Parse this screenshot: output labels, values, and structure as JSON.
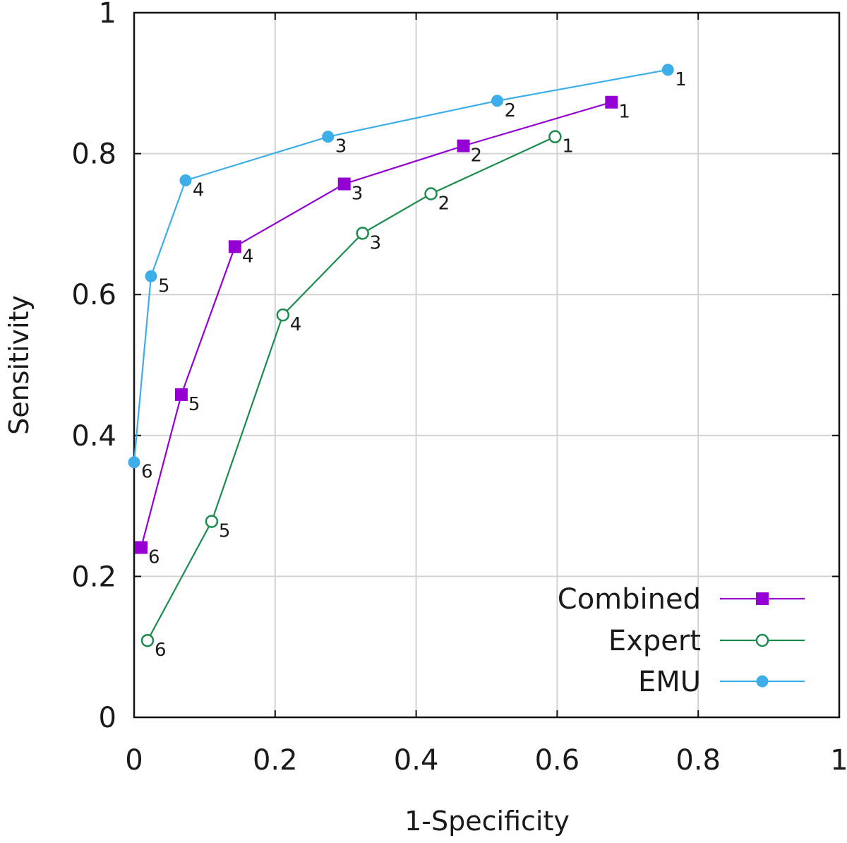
{
  "chart_data": {
    "type": "line",
    "title": "",
    "xlabel": "1-Specificity",
    "ylabel": "Sensitivity",
    "xlim": [
      0,
      1
    ],
    "ylim": [
      0,
      1
    ],
    "xticks": [
      "0",
      "0.2",
      "0.4",
      "0.6",
      "0.8",
      "1"
    ],
    "yticks": [
      "0",
      "0.2",
      "0.4",
      "0.6",
      "0.8",
      "1"
    ],
    "grid": true,
    "legend_position": "bottom-right",
    "series": [
      {
        "name": "Combined",
        "color": "#9400d3",
        "marker": "filled-square",
        "points": [
          {
            "x": 0.677,
            "y": 0.873,
            "label": "1"
          },
          {
            "x": 0.467,
            "y": 0.811,
            "label": "2"
          },
          {
            "x": 0.298,
            "y": 0.757,
            "label": "3"
          },
          {
            "x": 0.143,
            "y": 0.668,
            "label": "4"
          },
          {
            "x": 0.067,
            "y": 0.458,
            "label": "5"
          },
          {
            "x": 0.01,
            "y": 0.241,
            "label": "6"
          }
        ]
      },
      {
        "name": "Expert",
        "color": "#1a8c4e",
        "marker": "open-circle",
        "points": [
          {
            "x": 0.597,
            "y": 0.824,
            "label": "1"
          },
          {
            "x": 0.421,
            "y": 0.743,
            "label": "2"
          },
          {
            "x": 0.324,
            "y": 0.687,
            "label": "3"
          },
          {
            "x": 0.211,
            "y": 0.571,
            "label": "4"
          },
          {
            "x": 0.11,
            "y": 0.278,
            "label": "5"
          },
          {
            "x": 0.019,
            "y": 0.109,
            "label": "6"
          }
        ]
      },
      {
        "name": "EMU",
        "color": "#3daee9",
        "marker": "filled-circle",
        "points": [
          {
            "x": 0.757,
            "y": 0.919,
            "label": "1"
          },
          {
            "x": 0.515,
            "y": 0.875,
            "label": "2"
          },
          {
            "x": 0.275,
            "y": 0.824,
            "label": "3"
          },
          {
            "x": 0.073,
            "y": 0.762,
            "label": "4"
          },
          {
            "x": 0.024,
            "y": 0.626,
            "label": "5"
          },
          {
            "x": 0.0,
            "y": 0.362,
            "label": "6"
          }
        ]
      }
    ]
  }
}
